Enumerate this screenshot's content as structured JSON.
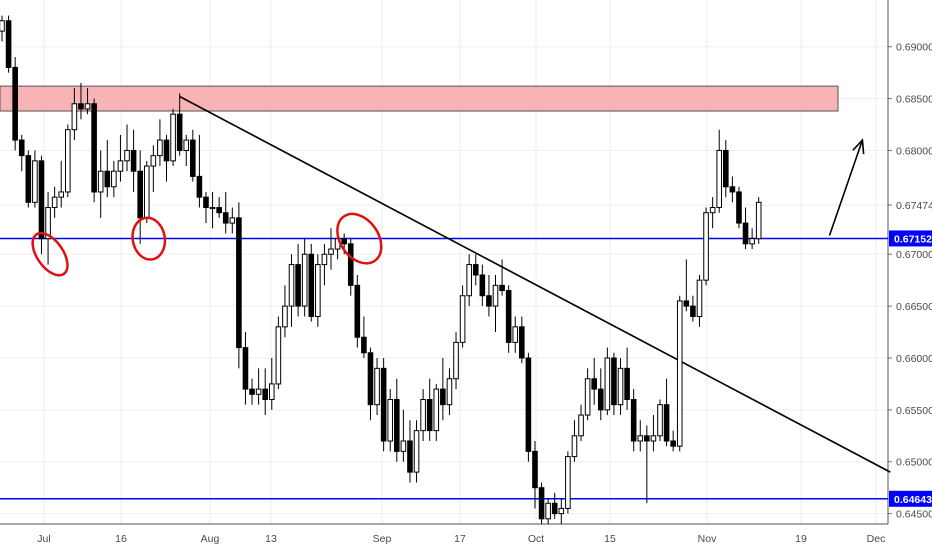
{
  "chart_data": {
    "type": "candlestick",
    "x_tick_labels": [
      "Jul",
      "16",
      "Aug",
      "13",
      "Sep",
      "17",
      "Oct",
      "15",
      "Nov",
      "19",
      "Dec"
    ],
    "y_tick_labels": [
      "0.69000",
      "0.68500",
      "0.68000",
      "0.67474",
      "0.67000",
      "0.66500",
      "0.66000",
      "0.65500",
      "0.65000",
      "0.64500"
    ],
    "ylim": [
      0.644,
      0.6945
    ],
    "grid": true,
    "series": [
      {
        "values": [
          [
            0.6915,
            0.693,
            0.6905,
            0.6925
          ],
          [
            0.6925,
            0.693,
            0.6875,
            0.688
          ],
          [
            0.688,
            0.689,
            0.68,
            0.681
          ],
          [
            0.681,
            0.6815,
            0.678,
            0.6795
          ],
          [
            0.6795,
            0.68,
            0.6745,
            0.675
          ],
          [
            0.675,
            0.68,
            0.6745,
            0.679
          ],
          [
            0.679,
            0.6795,
            0.67,
            0.6715
          ],
          [
            0.6715,
            0.676,
            0.669,
            0.6745
          ],
          [
            0.6745,
            0.6765,
            0.6735,
            0.6755
          ],
          [
            0.6755,
            0.679,
            0.6745,
            0.676
          ],
          [
            0.676,
            0.6825,
            0.6755,
            0.682
          ],
          [
            0.682,
            0.686,
            0.681,
            0.6845
          ],
          [
            0.6845,
            0.6865,
            0.683,
            0.684
          ],
          [
            0.684,
            0.686,
            0.6835,
            0.6845
          ],
          [
            0.6845,
            0.685,
            0.675,
            0.676
          ],
          [
            0.676,
            0.68,
            0.6735,
            0.678
          ],
          [
            0.678,
            0.681,
            0.6755,
            0.6765
          ],
          [
            0.6765,
            0.679,
            0.6755,
            0.678
          ],
          [
            0.678,
            0.6815,
            0.677,
            0.679
          ],
          [
            0.679,
            0.6825,
            0.678,
            0.68
          ],
          [
            0.68,
            0.682,
            0.676,
            0.678
          ],
          [
            0.678,
            0.68,
            0.671,
            0.6735
          ],
          [
            0.6735,
            0.679,
            0.673,
            0.6785
          ],
          [
            0.6785,
            0.6805,
            0.676,
            0.6795
          ],
          [
            0.6795,
            0.683,
            0.6785,
            0.681
          ],
          [
            0.681,
            0.6815,
            0.677,
            0.679
          ],
          [
            0.679,
            0.684,
            0.6785,
            0.6835
          ],
          [
            0.6835,
            0.6855,
            0.6795,
            0.68
          ],
          [
            0.68,
            0.6815,
            0.6785,
            0.681
          ],
          [
            0.681,
            0.682,
            0.677,
            0.6775
          ],
          [
            0.6775,
            0.6815,
            0.6745,
            0.6755
          ],
          [
            0.6755,
            0.676,
            0.673,
            0.6745
          ],
          [
            0.6745,
            0.676,
            0.6725,
            0.6745
          ],
          [
            0.6745,
            0.6755,
            0.6735,
            0.674
          ],
          [
            0.674,
            0.676,
            0.672,
            0.673
          ],
          [
            0.673,
            0.6745,
            0.672,
            0.6735
          ],
          [
            0.6735,
            0.675,
            0.659,
            0.661
          ],
          [
            0.661,
            0.6625,
            0.6555,
            0.657
          ],
          [
            0.657,
            0.658,
            0.6555,
            0.6565
          ],
          [
            0.6565,
            0.659,
            0.6555,
            0.657
          ],
          [
            0.657,
            0.659,
            0.6545,
            0.656
          ],
          [
            0.656,
            0.66,
            0.655,
            0.6575
          ],
          [
            0.6575,
            0.664,
            0.657,
            0.663
          ],
          [
            0.663,
            0.667,
            0.662,
            0.665
          ],
          [
            0.665,
            0.67,
            0.663,
            0.669
          ],
          [
            0.669,
            0.671,
            0.664,
            0.665
          ],
          [
            0.665,
            0.6715,
            0.664,
            0.67
          ],
          [
            0.67,
            0.671,
            0.6635,
            0.664
          ],
          [
            0.664,
            0.67,
            0.663,
            0.669
          ],
          [
            0.669,
            0.671,
            0.667,
            0.67
          ],
          [
            0.67,
            0.6725,
            0.6685,
            0.6705
          ],
          [
            0.6705,
            0.6725,
            0.6695,
            0.6715
          ],
          [
            0.6715,
            0.672,
            0.67,
            0.671
          ],
          [
            0.671,
            0.6715,
            0.666,
            0.667
          ],
          [
            0.667,
            0.668,
            0.661,
            0.662
          ],
          [
            0.662,
            0.664,
            0.66,
            0.6605
          ],
          [
            0.6605,
            0.661,
            0.654,
            0.6555
          ],
          [
            0.6555,
            0.66,
            0.6545,
            0.659
          ],
          [
            0.659,
            0.66,
            0.651,
            0.652
          ],
          [
            0.652,
            0.657,
            0.651,
            0.656
          ],
          [
            0.656,
            0.658,
            0.65,
            0.651
          ],
          [
            0.651,
            0.655,
            0.65,
            0.652
          ],
          [
            0.652,
            0.654,
            0.648,
            0.649
          ],
          [
            0.649,
            0.654,
            0.648,
            0.653
          ],
          [
            0.653,
            0.657,
            0.652,
            0.656
          ],
          [
            0.656,
            0.658,
            0.652,
            0.653
          ],
          [
            0.653,
            0.6575,
            0.652,
            0.657
          ],
          [
            0.657,
            0.66,
            0.654,
            0.6555
          ],
          [
            0.6555,
            0.659,
            0.6545,
            0.658
          ],
          [
            0.658,
            0.6625,
            0.657,
            0.6615
          ],
          [
            0.6615,
            0.667,
            0.661,
            0.666
          ],
          [
            0.666,
            0.67,
            0.665,
            0.669
          ],
          [
            0.669,
            0.67,
            0.667,
            0.668
          ],
          [
            0.668,
            0.669,
            0.665,
            0.666
          ],
          [
            0.666,
            0.668,
            0.664,
            0.665
          ],
          [
            0.665,
            0.668,
            0.6625,
            0.667
          ],
          [
            0.667,
            0.6695,
            0.666,
            0.6665
          ],
          [
            0.6665,
            0.667,
            0.6605,
            0.6615
          ],
          [
            0.6615,
            0.664,
            0.6605,
            0.663
          ],
          [
            0.663,
            0.664,
            0.6595,
            0.66
          ],
          [
            0.66,
            0.6605,
            0.65,
            0.651
          ],
          [
            0.651,
            0.652,
            0.6455,
            0.6475
          ],
          [
            0.6475,
            0.648,
            0.644,
            0.6445
          ],
          [
            0.6445,
            0.6465,
            0.644,
            0.646
          ],
          [
            0.646,
            0.647,
            0.6445,
            0.645
          ],
          [
            0.645,
            0.6465,
            0.644,
            0.6455
          ],
          [
            0.6455,
            0.651,
            0.645,
            0.6505
          ],
          [
            0.6505,
            0.654,
            0.65,
            0.6525
          ],
          [
            0.6525,
            0.6555,
            0.652,
            0.6545
          ],
          [
            0.6545,
            0.659,
            0.654,
            0.658
          ],
          [
            0.658,
            0.66,
            0.6555,
            0.657
          ],
          [
            0.657,
            0.659,
            0.654,
            0.655
          ],
          [
            0.655,
            0.661,
            0.6545,
            0.66
          ],
          [
            0.66,
            0.6605,
            0.6545,
            0.6555
          ],
          [
            0.6555,
            0.66,
            0.6545,
            0.659
          ],
          [
            0.659,
            0.661,
            0.655,
            0.656
          ],
          [
            0.656,
            0.657,
            0.651,
            0.652
          ],
          [
            0.652,
            0.654,
            0.651,
            0.6525
          ],
          [
            0.6525,
            0.6535,
            0.646,
            0.652
          ],
          [
            0.652,
            0.6545,
            0.651,
            0.6525
          ],
          [
            0.6525,
            0.656,
            0.652,
            0.6555
          ],
          [
            0.6555,
            0.658,
            0.6515,
            0.652
          ],
          [
            0.652,
            0.653,
            0.651,
            0.6515
          ],
          [
            0.6515,
            0.666,
            0.651,
            0.6655
          ],
          [
            0.6655,
            0.6695,
            0.6645,
            0.665
          ],
          [
            0.665,
            0.666,
            0.6635,
            0.664
          ],
          [
            0.664,
            0.668,
            0.663,
            0.6675
          ],
          [
            0.6675,
            0.6745,
            0.667,
            0.674
          ],
          [
            0.674,
            0.6755,
            0.6725,
            0.6745
          ],
          [
            0.6745,
            0.682,
            0.674,
            0.68
          ],
          [
            0.68,
            0.681,
            0.6755,
            0.6765
          ],
          [
            0.6765,
            0.6775,
            0.675,
            0.676
          ],
          [
            0.676,
            0.6765,
            0.6725,
            0.673
          ],
          [
            0.673,
            0.6745,
            0.6705,
            0.671
          ],
          [
            0.671,
            0.6725,
            0.6705,
            0.6715
          ],
          [
            0.6715,
            0.6755,
            0.671,
            0.675
          ]
        ]
      }
    ],
    "annotations": {
      "resistance_zone": [
        0.6838,
        0.6862
      ],
      "support_lines": [
        0.67152,
        0.64643
      ],
      "trendline": [
        [
          27,
          0.6852
        ],
        [
          135,
          0.649
        ]
      ],
      "arrow": [
        [
          125,
          0.6718
        ],
        [
          130,
          0.681
        ]
      ],
      "circled_candles": [
        7,
        22,
        54
      ]
    },
    "price_badges": [
      {
        "label": "0.67152",
        "value": 0.67152
      },
      {
        "label": "0.64643",
        "value": 0.64643
      }
    ],
    "colors": {
      "up_body": "#ffffff",
      "down_body": "#000000",
      "wick": "#000000",
      "horizontal_line": "#0000ff",
      "badge": "#0000ff",
      "zone_fill": "#f8b4b4",
      "circle": "#e01010",
      "trendline": "#000000",
      "grid": "#eeeeee"
    }
  }
}
